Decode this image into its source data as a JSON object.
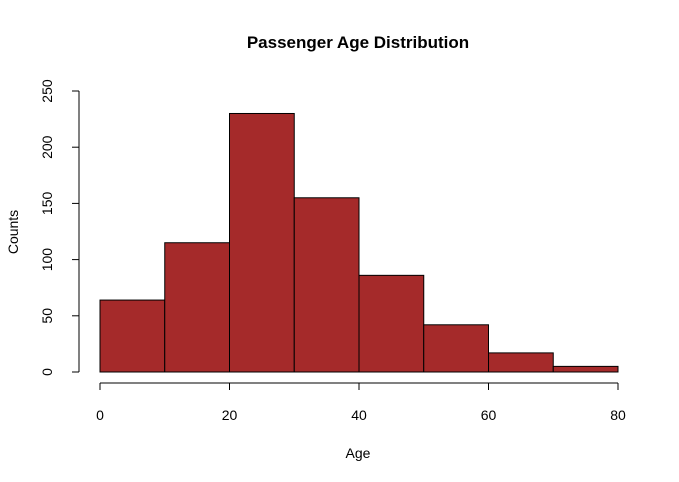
{
  "chart_data": {
    "type": "bar",
    "title": "Passenger Age Distribution",
    "xlabel": "Age",
    "ylabel": "Counts",
    "bins": [
      {
        "start": 0,
        "end": 10,
        "count": 64
      },
      {
        "start": 10,
        "end": 20,
        "count": 115
      },
      {
        "start": 20,
        "end": 30,
        "count": 230
      },
      {
        "start": 30,
        "end": 40,
        "count": 155
      },
      {
        "start": 40,
        "end": 50,
        "count": 86
      },
      {
        "start": 50,
        "end": 60,
        "count": 42
      },
      {
        "start": 60,
        "end": 70,
        "count": 17
      },
      {
        "start": 70,
        "end": 80,
        "count": 5
      }
    ],
    "xlim": [
      0,
      80
    ],
    "ylim": [
      0,
      250
    ],
    "x_ticks": [
      0,
      20,
      40,
      60,
      80
    ],
    "y_ticks": [
      0,
      50,
      100,
      150,
      200,
      250
    ],
    "bar_color": "#a52a2a",
    "grid": false
  }
}
